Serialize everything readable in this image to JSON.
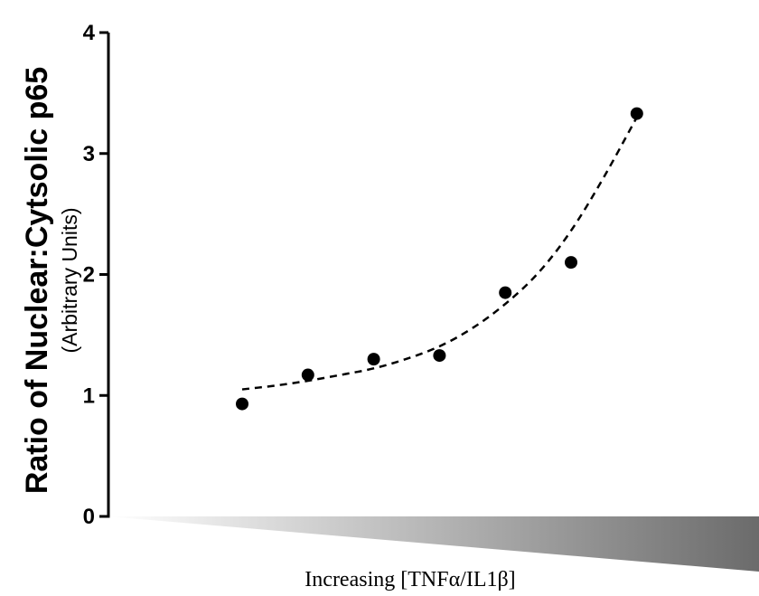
{
  "chart_data": {
    "type": "scatter",
    "ylabel": "Ratio of Nuclear:Cytsolic p65",
    "ylabel_sub": "(Arbitrary Units)",
    "xlabel": "Increasing [TNFα/IL1β]",
    "ylim": [
      0,
      4
    ],
    "yticks": [
      0,
      1,
      2,
      3,
      4
    ],
    "x": [
      1,
      2,
      3,
      4,
      5,
      6,
      7
    ],
    "values": [
      0.93,
      1.17,
      1.3,
      1.33,
      1.85,
      2.1,
      3.33
    ],
    "fit": {
      "style": "dashed",
      "model": "exponential",
      "x": [
        1,
        1.5,
        2,
        2.5,
        3,
        3.5,
        4,
        4.5,
        5,
        5.5,
        6,
        6.5,
        7
      ],
      "y": [
        1.05,
        1.08,
        1.12,
        1.17,
        1.22,
        1.3,
        1.4,
        1.55,
        1.75,
        2.0,
        2.35,
        2.8,
        3.3
      ]
    },
    "x_axis_graphic": "gradient-wedge",
    "colors": {
      "points": "#000000",
      "axis": "#000000",
      "wedge_start": "#ffffff",
      "wedge_end": "#6b6b6b"
    },
    "grid": false,
    "legend": "none"
  }
}
